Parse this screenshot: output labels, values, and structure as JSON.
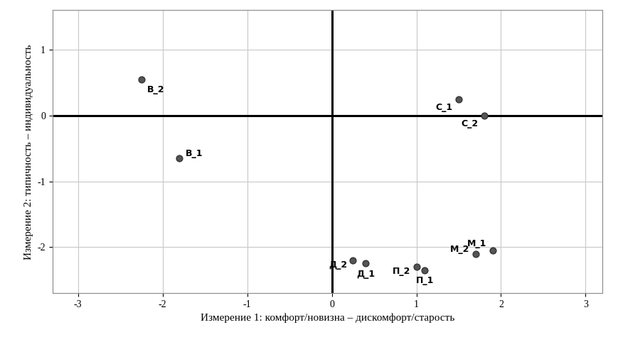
{
  "chart_data": {
    "type": "scatter",
    "x_label": "Измерение 1: комфорт/новизна – дискомфорт/старость",
    "y_label": "Измерение 2: типичность – индивидуальность",
    "labels": [
      "В_2",
      "В_1",
      "С_1",
      "С_2",
      "Д_2",
      "Д_1",
      "П_2",
      "П_1",
      "М_2",
      "М_1"
    ],
    "x": [
      -2.25,
      -1.8,
      1.5,
      1.8,
      0.25,
      0.4,
      1.0,
      1.1,
      1.7,
      1.9
    ],
    "values": [
      0.55,
      -0.65,
      0.25,
      0.0,
      -2.2,
      -2.25,
      -2.3,
      -2.35,
      -2.1,
      -2.05
    ],
    "color": "#555555",
    "marker": "o",
    "xlim": [
      -3.3,
      3.2
    ],
    "xticks": [
      -3,
      -2,
      -1,
      0,
      1,
      2,
      3
    ],
    "ylim": [
      -2.7,
      1.6
    ],
    "yticks": [
      -2,
      -1,
      0,
      1
    ],
    "grid": true
  }
}
